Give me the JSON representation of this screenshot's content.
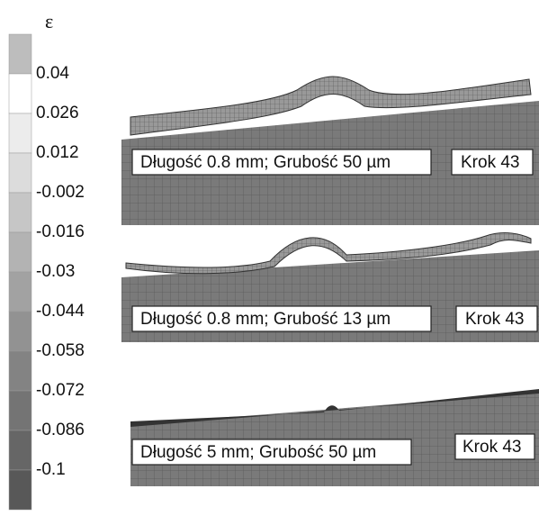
{
  "legend": {
    "symbol": "ε",
    "labels": [
      "0.04",
      "0.026",
      "0.012",
      "-0.002",
      "-0.016",
      "-0.03",
      "-0.044",
      "-0.058",
      "-0.072",
      "-0.086",
      "-0.1"
    ]
  },
  "panels": [
    {
      "label": "Długość 0.8 mm; Grubość 50 µm",
      "step": "Krok 43"
    },
    {
      "label": "Długość 0.8 mm; Grubość 13 µm",
      "step": "Krok 43"
    },
    {
      "label": "Długość 5 mm; Grubość 50 µm",
      "step": "Krok 43"
    }
  ]
}
